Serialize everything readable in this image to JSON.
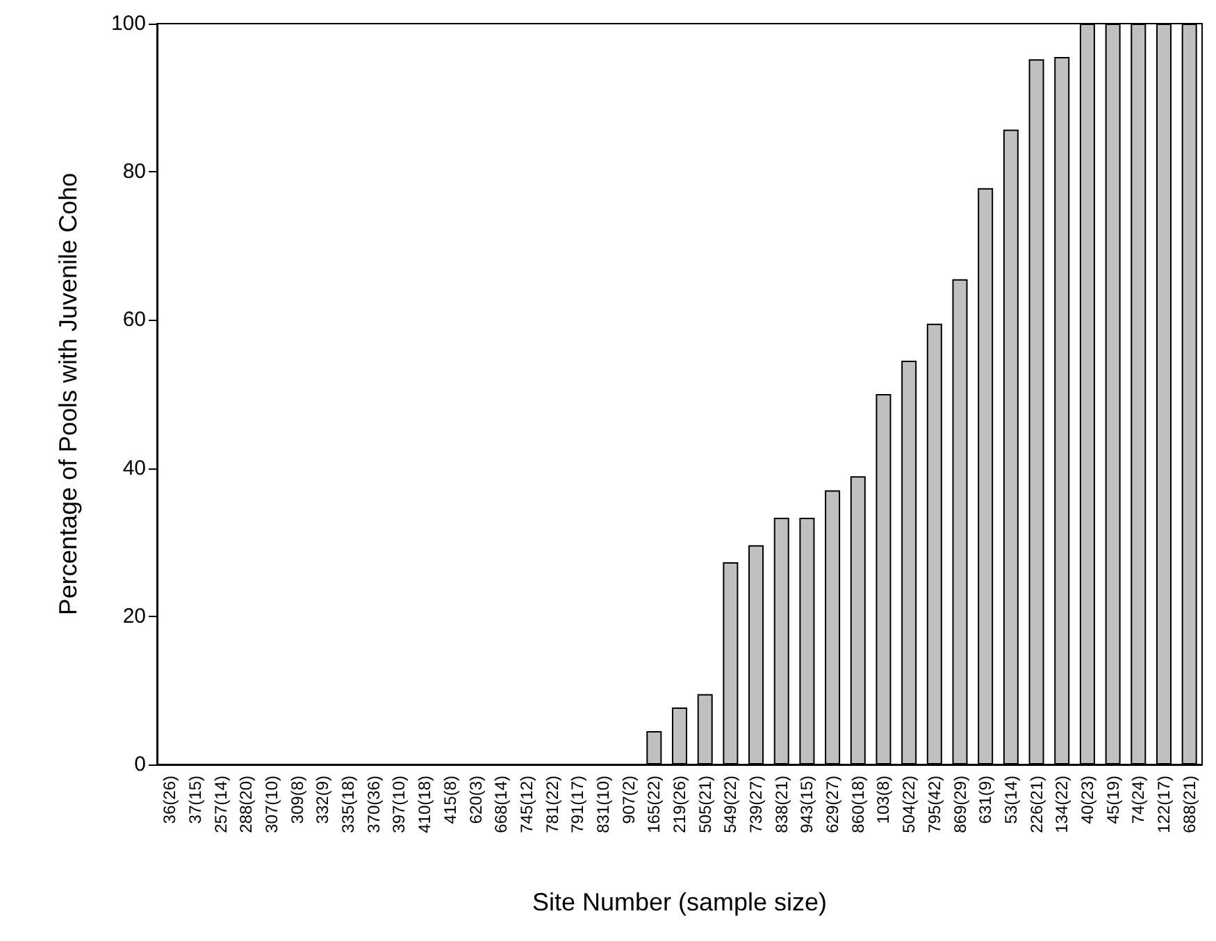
{
  "chart_data": {
    "type": "bar",
    "xlabel": "Site Number (sample size)",
    "ylabel": "Percentage of Pools with Juvenile Coho",
    "categories": [
      "36(26)",
      "37(15)",
      "257(14)",
      "288(20)",
      "307(10)",
      "309(8)",
      "332(9)",
      "335(18)",
      "370(36)",
      "397(10)",
      "410(18)",
      "415(8)",
      "620(3)",
      "668(14)",
      "745(12)",
      "781(22)",
      "791(17)",
      "831(10)",
      "907(2)",
      "165(22)",
      "219(26)",
      "505(21)",
      "549(22)",
      "739(27)",
      "838(21)",
      "943(15)",
      "629(27)",
      "860(18)",
      "103(8)",
      "504(22)",
      "795(42)",
      "869(29)",
      "631(9)",
      "53(14)",
      "226(21)",
      "134(22)",
      "40(23)",
      "45(19)",
      "74(24)",
      "122(17)",
      "688(21)"
    ],
    "values": [
      0,
      0,
      0,
      0,
      0,
      0,
      0,
      0,
      0,
      0,
      0,
      0,
      0,
      0,
      0,
      0,
      0,
      0,
      0,
      4.5,
      7.7,
      9.5,
      27.3,
      29.6,
      33.3,
      33.3,
      37.0,
      38.9,
      50,
      54.5,
      59.5,
      65.5,
      77.8,
      85.7,
      95.2,
      95.5,
      100,
      100,
      100,
      100,
      100
    ],
    "color": "#c0c0c0",
    "ylim": [
      0,
      100
    ],
    "yticks": [
      0,
      20,
      40,
      60,
      80,
      100
    ],
    "grid": false
  }
}
